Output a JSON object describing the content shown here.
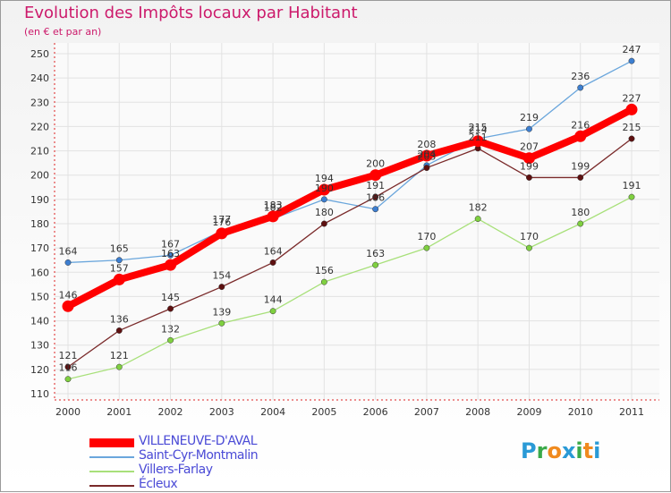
{
  "chart_data": {
    "type": "line",
    "title": "Evolution des Impôts locaux par Habitant",
    "subtitle": "(en € et par an)",
    "xlabel": "",
    "ylabel": "",
    "ylim": [
      110,
      250
    ],
    "yticks": [
      "110",
      "120",
      "130",
      "140",
      "150",
      "160",
      "170",
      "180",
      "190",
      "200",
      "210",
      "220",
      "230",
      "240",
      "250"
    ],
    "categories": [
      "2000",
      "2001",
      "2002",
      "2003",
      "2004",
      "2005",
      "2006",
      "2007",
      "2008",
      "2009",
      "2010",
      "2011"
    ],
    "grid": true,
    "series": [
      {
        "name": "VILLENEUVE-D'AVAL",
        "values": [
          146,
          157,
          163,
          176,
          183,
          194,
          200,
          208,
          214,
          207,
          216,
          227
        ],
        "color": "#ff0000",
        "marker_color": "#ff0000",
        "emphasis": true
      },
      {
        "name": "Saint-Cyr-Montmalin",
        "values": [
          164,
          165,
          167,
          177,
          182,
          190,
          186,
          204,
          215,
          219,
          236,
          247
        ],
        "color": "#6aa6dc",
        "marker_color": "#3d7fd1",
        "emphasis": false
      },
      {
        "name": "Villers-Farlay",
        "values": [
          116,
          121,
          132,
          139,
          144,
          156,
          163,
          170,
          182,
          170,
          180,
          191
        ],
        "color": "#a8e07a",
        "marker_color": "#7fd040",
        "emphasis": false
      },
      {
        "name": "Écleux",
        "values": [
          121,
          136,
          145,
          154,
          164,
          180,
          191,
          203,
          211,
          199,
          199,
          215
        ],
        "color": "#7a2a2a",
        "marker_color": "#5e1010",
        "emphasis": false
      }
    ]
  },
  "logo": {
    "letters": [
      "P",
      "r",
      "o",
      "x",
      "i",
      "t",
      "i"
    ],
    "colors": [
      "#2a9ad6",
      "#3aaa4a",
      "#f08a1e",
      "#2a9ad6",
      "#3aaa4a",
      "#f08a1e",
      "#2a9ad6"
    ]
  }
}
